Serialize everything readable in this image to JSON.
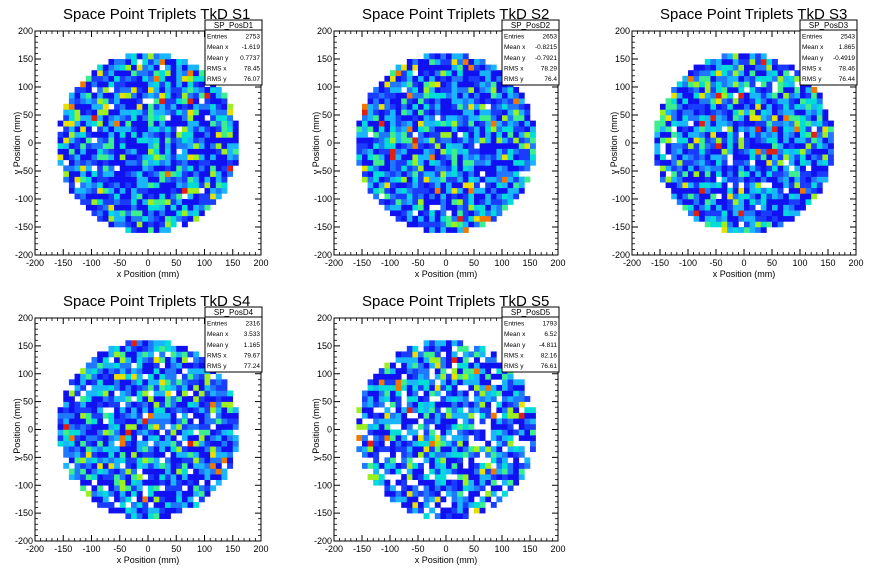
{
  "figure": {
    "common": {
      "xlabel": "x Position (mm)",
      "ylabel": "y Position (mm)",
      "xlim": [
        -200,
        200
      ],
      "ylim": [
        -200,
        200
      ],
      "xticks": [
        -200,
        -150,
        -100,
        -50,
        0,
        50,
        100,
        150,
        200
      ],
      "yticks": [
        -200,
        -150,
        -100,
        -50,
        0,
        50,
        100,
        150,
        200
      ],
      "bin_width_mm": 10,
      "palette": [
        "#1010f0",
        "#1a3cff",
        "#1f78ff",
        "#19b6ff",
        "#00dcd8",
        "#3cef8c",
        "#9cf020",
        "#e8e000",
        "#f07800",
        "#e02010"
      ]
    }
  },
  "chart_data": [
    {
      "type": "heatmap",
      "title": "Space Point Triplets TkD S1",
      "stats_name": "SP_PosD1",
      "stats": [
        {
          "label": "Entries",
          "value": "2753"
        },
        {
          "label": "Mean x",
          "value": "-1.619"
        },
        {
          "label": "Mean y",
          "value": "0.7737"
        },
        {
          "label": "RMS x",
          "value": "78.45"
        },
        {
          "label": "RMS y",
          "value": "76.07"
        }
      ],
      "entries": 2753,
      "mean_x": -1.619,
      "mean_y": 0.7737,
      "rms_x": 78.45,
      "rms_y": 76.07,
      "occupied_region": "disc of radius ~160 mm centred at (0,0)",
      "fill_fraction": 0.97
    },
    {
      "type": "heatmap",
      "title": "Space Point Triplets TkD S2",
      "stats_name": "SP_PosD2",
      "stats": [
        {
          "label": "Entries",
          "value": "2653"
        },
        {
          "label": "Mean x",
          "value": "-0.8215"
        },
        {
          "label": "Mean y",
          "value": "-0.7921"
        },
        {
          "label": "RMS x",
          "value": "78.29"
        },
        {
          "label": "RMS y",
          "value": "76.4"
        }
      ],
      "entries": 2653,
      "mean_x": -0.8215,
      "mean_y": -0.7921,
      "rms_x": 78.29,
      "rms_y": 76.4,
      "occupied_region": "disc of radius ~160 mm centred at (0,0)",
      "fill_fraction": 0.97
    },
    {
      "type": "heatmap",
      "title": "Space Point Triplets TkD S3",
      "stats_name": "SP_PosD3",
      "stats": [
        {
          "label": "Entries",
          "value": "2543"
        },
        {
          "label": "Mean x",
          "value": "1.865"
        },
        {
          "label": "Mean y",
          "value": "-0.4919"
        },
        {
          "label": "RMS x",
          "value": "78.46"
        },
        {
          "label": "RMS y",
          "value": "76.44"
        }
      ],
      "entries": 2543,
      "mean_x": 1.865,
      "mean_y": -0.4919,
      "rms_x": 78.46,
      "rms_y": 76.44,
      "occupied_region": "disc of radius ~160 mm centred at (0,0)",
      "fill_fraction": 0.94
    },
    {
      "type": "heatmap",
      "title": "Space Point Triplets TkD S4",
      "stats_name": "SP_PosD4",
      "stats": [
        {
          "label": "Entries",
          "value": "2316"
        },
        {
          "label": "Mean x",
          "value": "3.533"
        },
        {
          "label": "Mean y",
          "value": "1.165"
        },
        {
          "label": "RMS x",
          "value": "79.67"
        },
        {
          "label": "RMS y",
          "value": "77.24"
        }
      ],
      "entries": 2316,
      "mean_x": 3.533,
      "mean_y": 1.165,
      "rms_x": 79.67,
      "rms_y": 77.24,
      "occupied_region": "disc of radius ~160 mm centred at (0,0)",
      "fill_fraction": 0.93
    },
    {
      "type": "heatmap",
      "title": "Space Point Triplets TkD S5",
      "stats_name": "SP_PosD5",
      "stats": [
        {
          "label": "Entries",
          "value": "1793"
        },
        {
          "label": "Mean x",
          "value": "6.52"
        },
        {
          "label": "Mean y",
          "value": "-4.811"
        },
        {
          "label": "RMS x",
          "value": "82.16"
        },
        {
          "label": "RMS y",
          "value": "76.61"
        }
      ],
      "entries": 1793,
      "mean_x": 6.52,
      "mean_y": -4.811,
      "rms_x": 82.16,
      "rms_y": 76.61,
      "occupied_region": "disc of radius ~160 mm centred at (0,0)",
      "fill_fraction": 0.8
    }
  ]
}
